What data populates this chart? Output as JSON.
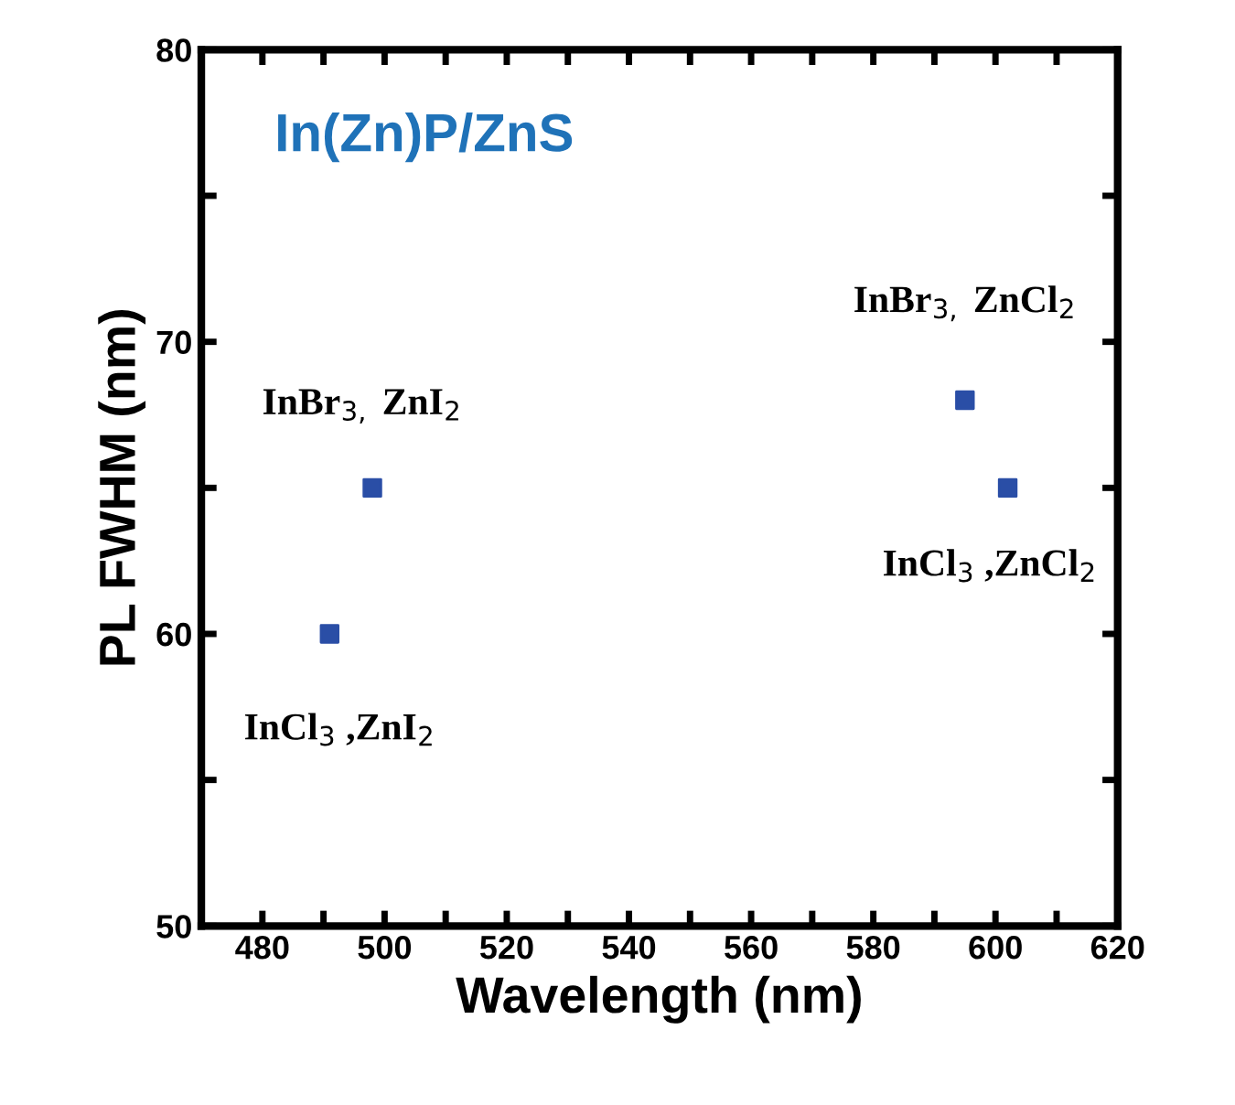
{
  "chart_data": {
    "type": "scatter",
    "title": "In(Zn)P/ZnS",
    "xlabel": "Wavelength (nm)",
    "ylabel": "PL FWHM (nm)",
    "x": [
      491,
      498,
      595,
      602
    ],
    "series": [
      {
        "color": "#2a4ea6",
        "values": [
          60,
          65,
          68,
          65
        ]
      }
    ],
    "marker": "square",
    "annotations": [
      {
        "text": "InCl$_{3}$ ,ZnI$_{2}$",
        "x": 491,
        "y": 60
      },
      {
        "text": "InBr$_{3,}$ ZnI$_{2}$",
        "x": 498,
        "y": 65
      },
      {
        "text": "InBr$_{3,}$ ZnCl$_{2}$",
        "x": 595,
        "y": 68
      },
      {
        "text": "InCl$_{3}$ ,ZnCl$_{2}$",
        "x": 602,
        "y": 65
      }
    ],
    "xlim": [
      470,
      620
    ],
    "ylim": [
      50,
      80
    ],
    "xticks": [
      480,
      {
        "value": 490,
        "label": null
      },
      500,
      {
        "value": 510,
        "label": null
      },
      520,
      {
        "value": 530,
        "label": null
      },
      540,
      {
        "value": 550,
        "label": null
      },
      560,
      {
        "value": 570,
        "label": null
      },
      580,
      {
        "value": 590,
        "label": null
      },
      600,
      {
        "value": 610,
        "label": null
      },
      620
    ],
    "yticks": [
      50,
      {
        "value": 55,
        "label": null
      },
      60,
      {
        "value": 65,
        "label": null
      },
      70,
      {
        "value": 75,
        "label": null
      },
      80
    ],
    "grid": false,
    "legend": false
  }
}
